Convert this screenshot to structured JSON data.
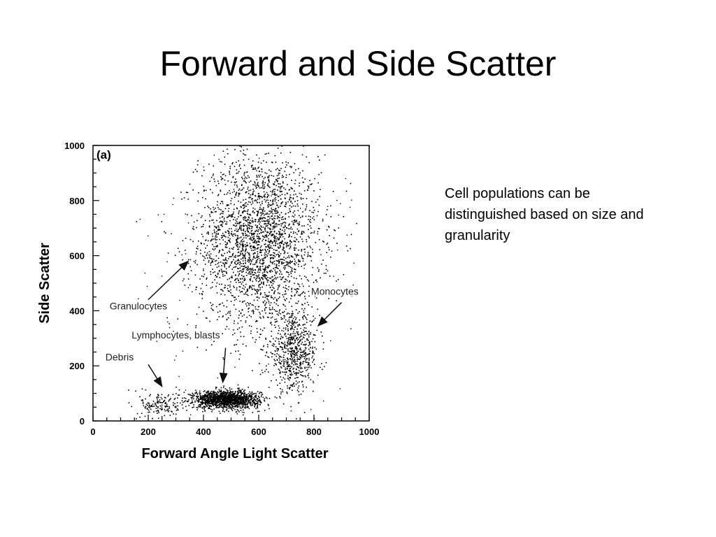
{
  "slide": {
    "title": "Forward and Side Scatter",
    "body_text": "Cell populations can be distinguished based on size and granularity"
  },
  "chart_data": {
    "type": "scatter",
    "panel_label": "(a)",
    "xlabel": "Forward Angle Light Scatter",
    "ylabel": "Side Scatter",
    "xlim": [
      0,
      1000
    ],
    "ylim": [
      0,
      1000
    ],
    "xticks": [
      0,
      200,
      400,
      600,
      800,
      1000
    ],
    "yticks": [
      0,
      200,
      400,
      600,
      800,
      1000
    ],
    "grid": false,
    "marker_color": "#000000",
    "populations": [
      {
        "label": "Granulocytes",
        "center": [
          600,
          650
        ],
        "spread": [
          110,
          160
        ],
        "count": 2600
      },
      {
        "label": "Monocytes",
        "center": [
          725,
          250
        ],
        "spread": [
          45,
          70
        ],
        "count": 650
      },
      {
        "label": "Lymphocytes, blasts",
        "center": [
          480,
          80
        ],
        "spread": [
          60,
          16
        ],
        "count": 1500
      },
      {
        "label": "Debris",
        "center": [
          240,
          60
        ],
        "spread": [
          35,
          25
        ],
        "count": 150
      }
    ],
    "annotations": [
      {
        "text": "Granulocytes",
        "text_pos": [
          60,
          405
        ],
        "arrow_from": [
          200,
          440
        ],
        "arrow_to": [
          345,
          580
        ]
      },
      {
        "text": "Monocytes",
        "text_pos": [
          790,
          458
        ],
        "arrow_from": [
          900,
          430
        ],
        "arrow_to": [
          815,
          345
        ]
      },
      {
        "text": "Lymphocytes, blasts",
        "text_pos": [
          140,
          300
        ],
        "arrow_from": [
          480,
          265
        ],
        "arrow_to": [
          470,
          140
        ]
      },
      {
        "text": "Debris",
        "text_pos": [
          45,
          220
        ],
        "arrow_from": [
          200,
          205
        ],
        "arrow_to": [
          250,
          125
        ]
      }
    ]
  }
}
